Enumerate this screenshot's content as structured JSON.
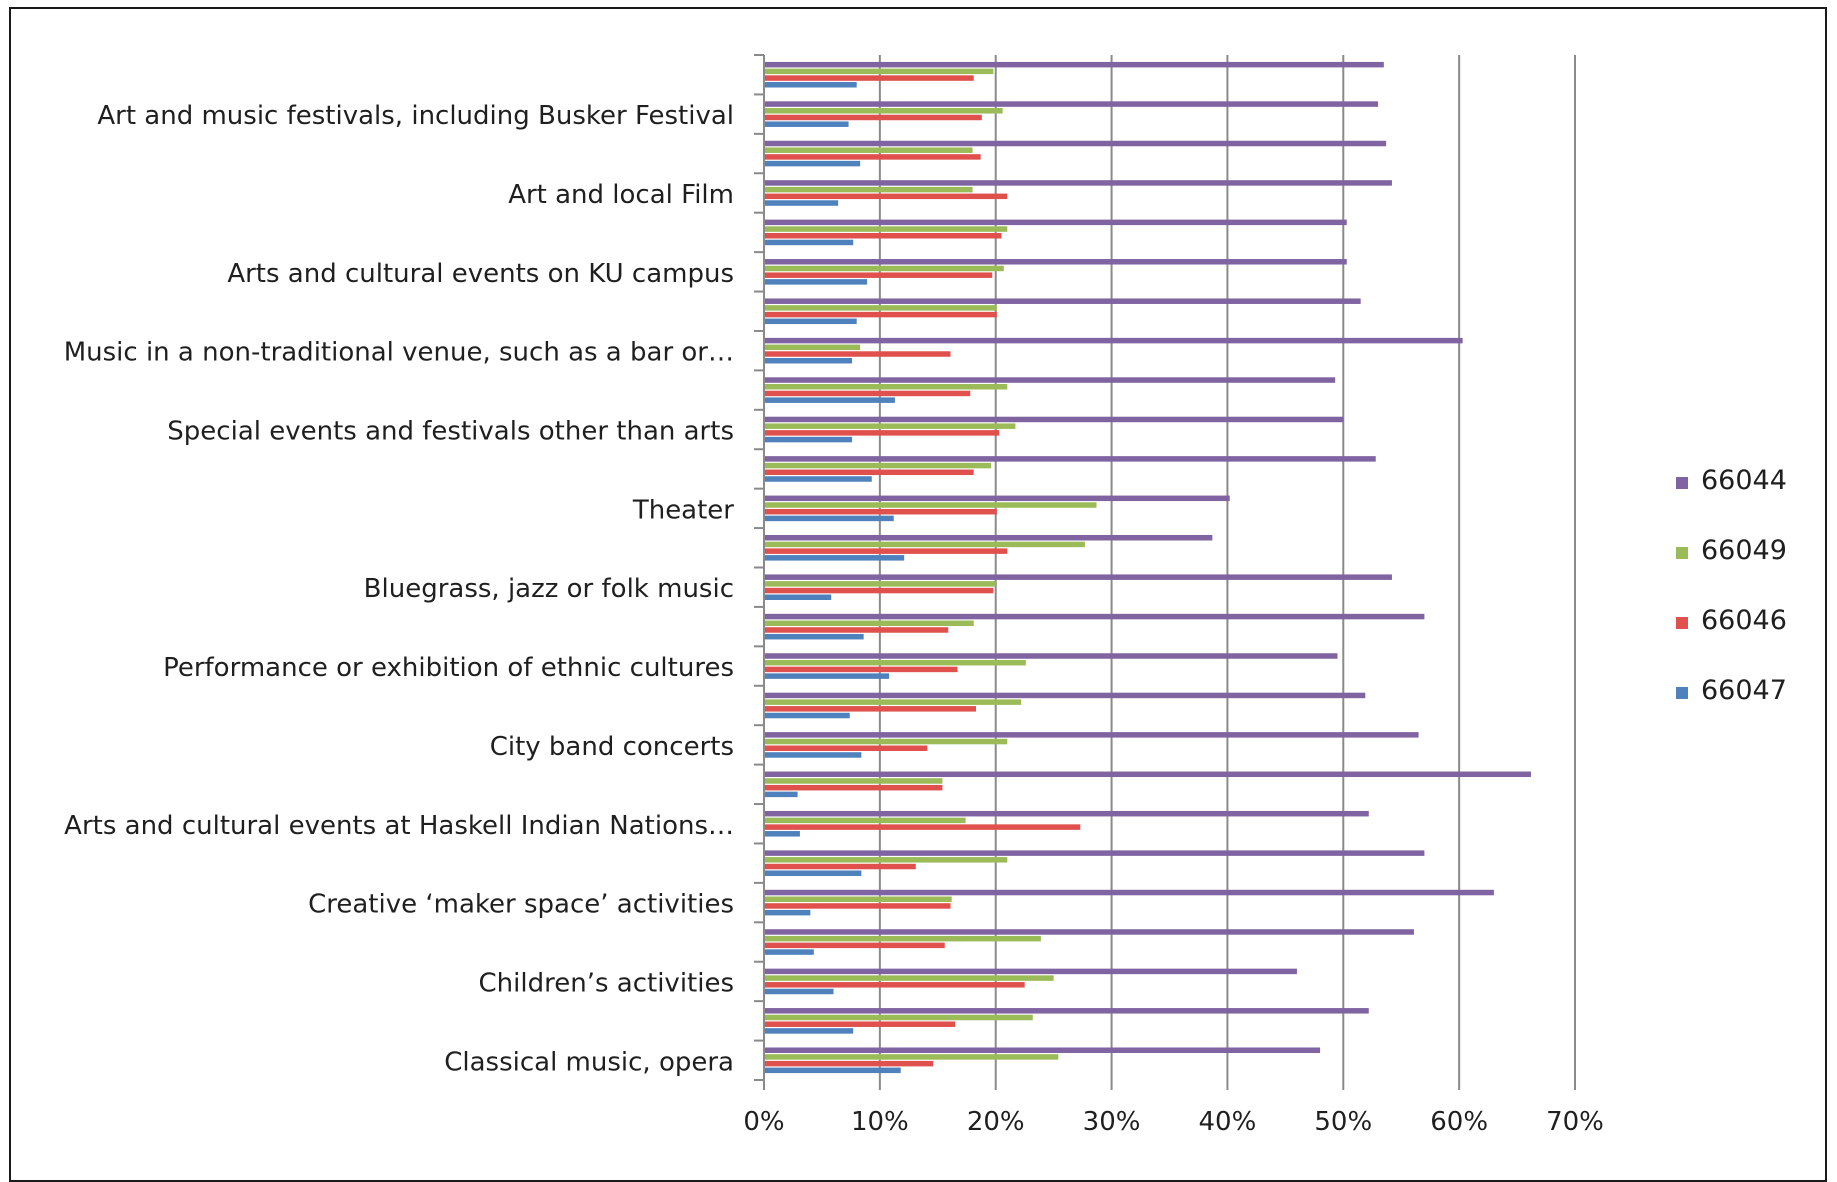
{
  "chart_data": {
    "type": "bar",
    "orientation": "horizontal",
    "title": "",
    "xlabel": "",
    "ylabel": "",
    "xlim": [
      0,
      0.7
    ],
    "x_ticks": [
      "0%",
      "10%",
      "20%",
      "30%",
      "40%",
      "50%",
      "60%",
      "70%"
    ],
    "grid": "vertical",
    "legend_position": "right",
    "categories": [
      "",
      "Art and music festivals, including Busker Festival",
      "",
      "Art and local Film",
      "",
      "Arts and cultural events on KU campus",
      "",
      "Music in a non-traditional venue, such as a bar or…",
      "",
      "Special events and festivals other than arts",
      "",
      "Theater",
      "",
      "Bluegrass, jazz or folk music",
      "",
      "Performance or exhibition of ethnic cultures",
      "",
      "City band concerts",
      "",
      "Arts and cultural events at Haskell Indian Nations…",
      "",
      "Creative ‘maker space’ activities",
      "",
      "Children’s activities",
      "",
      "Classical music, opera"
    ],
    "series": [
      {
        "name": "66044",
        "color": "#8064A2",
        "values": [
          0.535,
          0.53,
          0.537,
          0.542,
          0.503,
          0.503,
          0.515,
          0.603,
          0.493,
          0.5,
          0.528,
          0.402,
          0.387,
          0.542,
          0.57,
          0.495,
          0.519,
          0.565,
          0.662,
          0.522,
          0.57,
          0.63,
          0.561,
          0.46,
          0.522,
          0.48
        ]
      },
      {
        "name": "66049",
        "color": "#9BBB59",
        "values": [
          0.198,
          0.206,
          0.18,
          0.18,
          0.21,
          0.207,
          0.201,
          0.083,
          0.21,
          0.217,
          0.196,
          0.287,
          0.277,
          0.2,
          0.181,
          0.226,
          0.222,
          0.21,
          0.154,
          0.174,
          0.21,
          0.162,
          0.239,
          0.25,
          0.232,
          0.254
        ]
      },
      {
        "name": "66046",
        "color": "#E0504D",
        "values": [
          0.181,
          0.188,
          0.187,
          0.21,
          0.205,
          0.197,
          0.201,
          0.161,
          0.178,
          0.203,
          0.181,
          0.201,
          0.21,
          0.198,
          0.159,
          0.167,
          0.183,
          0.141,
          0.154,
          0.273,
          0.131,
          0.161,
          0.156,
          0.225,
          0.165,
          0.146
        ]
      },
      {
        "name": "66047",
        "color": "#4F81BD",
        "values": [
          0.08,
          0.073,
          0.083,
          0.064,
          0.077,
          0.089,
          0.08,
          0.076,
          0.113,
          0.076,
          0.093,
          0.112,
          0.121,
          0.058,
          0.086,
          0.108,
          0.074,
          0.084,
          0.029,
          0.031,
          0.084,
          0.04,
          0.043,
          0.06,
          0.077,
          0.118
        ]
      }
    ]
  }
}
